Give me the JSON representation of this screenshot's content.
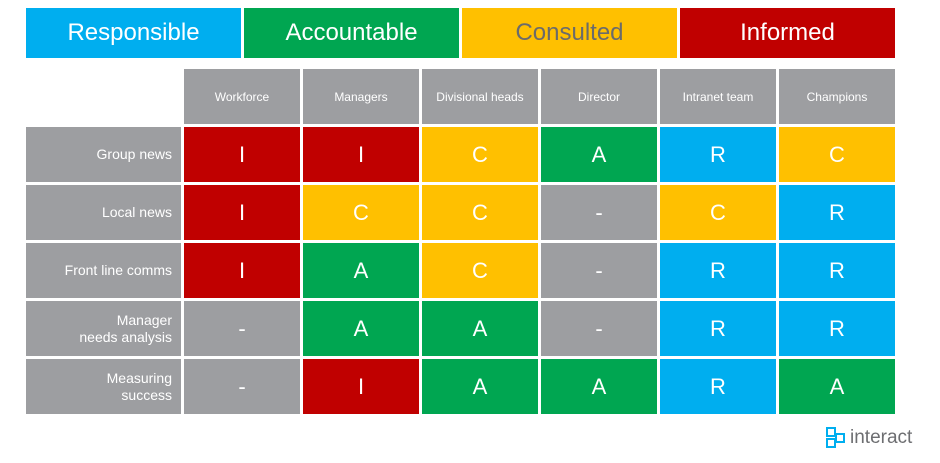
{
  "legend": [
    {
      "label": "Responsible",
      "bg": "#00aeef",
      "fg": "#ffffff",
      "width": 215
    },
    {
      "label": "Accountable",
      "bg": "#00a651",
      "fg": "#ffffff",
      "width": 215
    },
    {
      "label": "Consulted",
      "bg": "#ffc000",
      "fg": "#6b6b6b",
      "width": 215
    },
    {
      "label": "Informed",
      "bg": "#c00000",
      "fg": "#ffffff",
      "width": 215
    }
  ],
  "colors": {
    "R": "#00aeef",
    "A": "#00a651",
    "C": "#ffc000",
    "I": "#c00000",
    "-": "#9d9ea1"
  },
  "columns": [
    "Workforce",
    "Managers",
    "Divisional heads",
    "Director",
    "Intranet team",
    "Champions"
  ],
  "rows": [
    {
      "label_lines": [
        "Group news"
      ],
      "values": [
        "I",
        "I",
        "C",
        "A",
        "R",
        "C"
      ]
    },
    {
      "label_lines": [
        "Local news"
      ],
      "values": [
        "I",
        "C",
        "C",
        "-",
        "C",
        "R"
      ]
    },
    {
      "label_lines": [
        "Front line comms"
      ],
      "values": [
        "I",
        "A",
        "C",
        "-",
        "R",
        "R"
      ]
    },
    {
      "label_lines": [
        "Manager",
        "needs analysis"
      ],
      "values": [
        "-",
        "A",
        "A",
        "-",
        "R",
        "R"
      ]
    },
    {
      "label_lines": [
        "Measuring",
        "success"
      ],
      "values": [
        "-",
        "I",
        "A",
        "A",
        "R",
        "A"
      ]
    }
  ],
  "logo": {
    "text": "interact",
    "icon": "interact-logo-icon"
  }
}
